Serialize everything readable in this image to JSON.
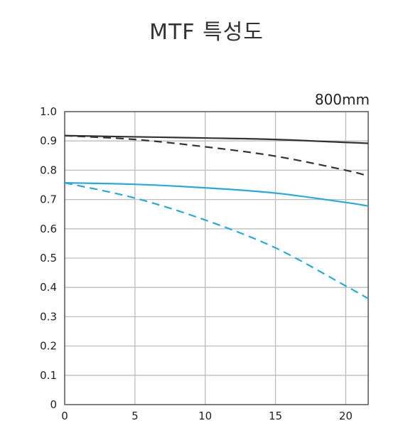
{
  "title": "MTF 특성도",
  "chart_data": {
    "type": "line",
    "annotation": "800mm",
    "xlim": [
      0,
      21.6
    ],
    "ylim": [
      0,
      1.0
    ],
    "x_ticks": [
      "0",
      "5",
      "10",
      "15",
      "20"
    ],
    "y_ticks": [
      "0",
      "0.1",
      "0.2",
      "0.3",
      "0.4",
      "0.5",
      "0.6",
      "0.7",
      "0.8",
      "0.9",
      "1.0"
    ],
    "grid": true,
    "colors": {
      "dark": "#333333",
      "blue": "#29a8e0"
    },
    "series": [
      {
        "color": "dark",
        "style": "solid",
        "x": [
          0,
          5,
          10,
          15,
          20,
          21.6
        ],
        "y": [
          0.918,
          0.914,
          0.91,
          0.905,
          0.895,
          0.892
        ]
      },
      {
        "color": "dark",
        "style": "dashed",
        "x": [
          0,
          5,
          10,
          15,
          20,
          21.6
        ],
        "y": [
          0.918,
          0.905,
          0.88,
          0.848,
          0.8,
          0.78
        ]
      },
      {
        "color": "blue",
        "style": "solid",
        "x": [
          0,
          5,
          10,
          15,
          20,
          21.6
        ],
        "y": [
          0.757,
          0.752,
          0.74,
          0.722,
          0.69,
          0.678
        ]
      },
      {
        "color": "blue",
        "style": "dashed",
        "x": [
          0,
          5,
          10,
          15,
          20,
          21.6
        ],
        "y": [
          0.757,
          0.705,
          0.63,
          0.535,
          0.405,
          0.362
        ]
      }
    ]
  }
}
